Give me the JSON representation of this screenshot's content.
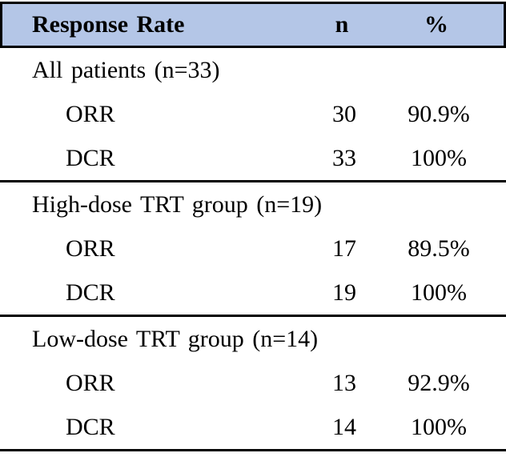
{
  "colors": {
    "header_bg": "#B4C6E7",
    "border": "#000000",
    "text": "#000000"
  },
  "table": {
    "columns": [
      "Response Rate",
      "n",
      "%"
    ],
    "sections": [
      {
        "label": "All patients (n=33)",
        "rows": [
          {
            "label": "ORR",
            "n": "30",
            "pct": "90.9%"
          },
          {
            "label": "DCR",
            "n": "33",
            "pct": "100%"
          }
        ]
      },
      {
        "label": "High-dose TRT group (n=19)",
        "rows": [
          {
            "label": "ORR",
            "n": "17",
            "pct": "89.5%"
          },
          {
            "label": "DCR",
            "n": "19",
            "pct": "100%"
          }
        ]
      },
      {
        "label": "Low-dose TRT group (n=14)",
        "rows": [
          {
            "label": "ORR",
            "n": "13",
            "pct": "92.9%"
          },
          {
            "label": "DCR",
            "n": "14",
            "pct": "100%"
          }
        ]
      }
    ]
  },
  "chart_data": {
    "type": "table",
    "title": "Response Rate",
    "columns": [
      "Response Rate",
      "n",
      "%"
    ],
    "rows": [
      [
        "All patients (n=33)",
        "",
        ""
      ],
      [
        "ORR",
        "30",
        "90.9%"
      ],
      [
        "DCR",
        "33",
        "100%"
      ],
      [
        "High-dose TRT group (n=19)",
        "",
        ""
      ],
      [
        "ORR",
        "17",
        "89.5%"
      ],
      [
        "DCR",
        "19",
        "100%"
      ],
      [
        "Low-dose TRT group (n=14)",
        "",
        ""
      ],
      [
        "ORR",
        "13",
        "92.9%"
      ],
      [
        "DCR",
        "14",
        "100%"
      ]
    ]
  }
}
